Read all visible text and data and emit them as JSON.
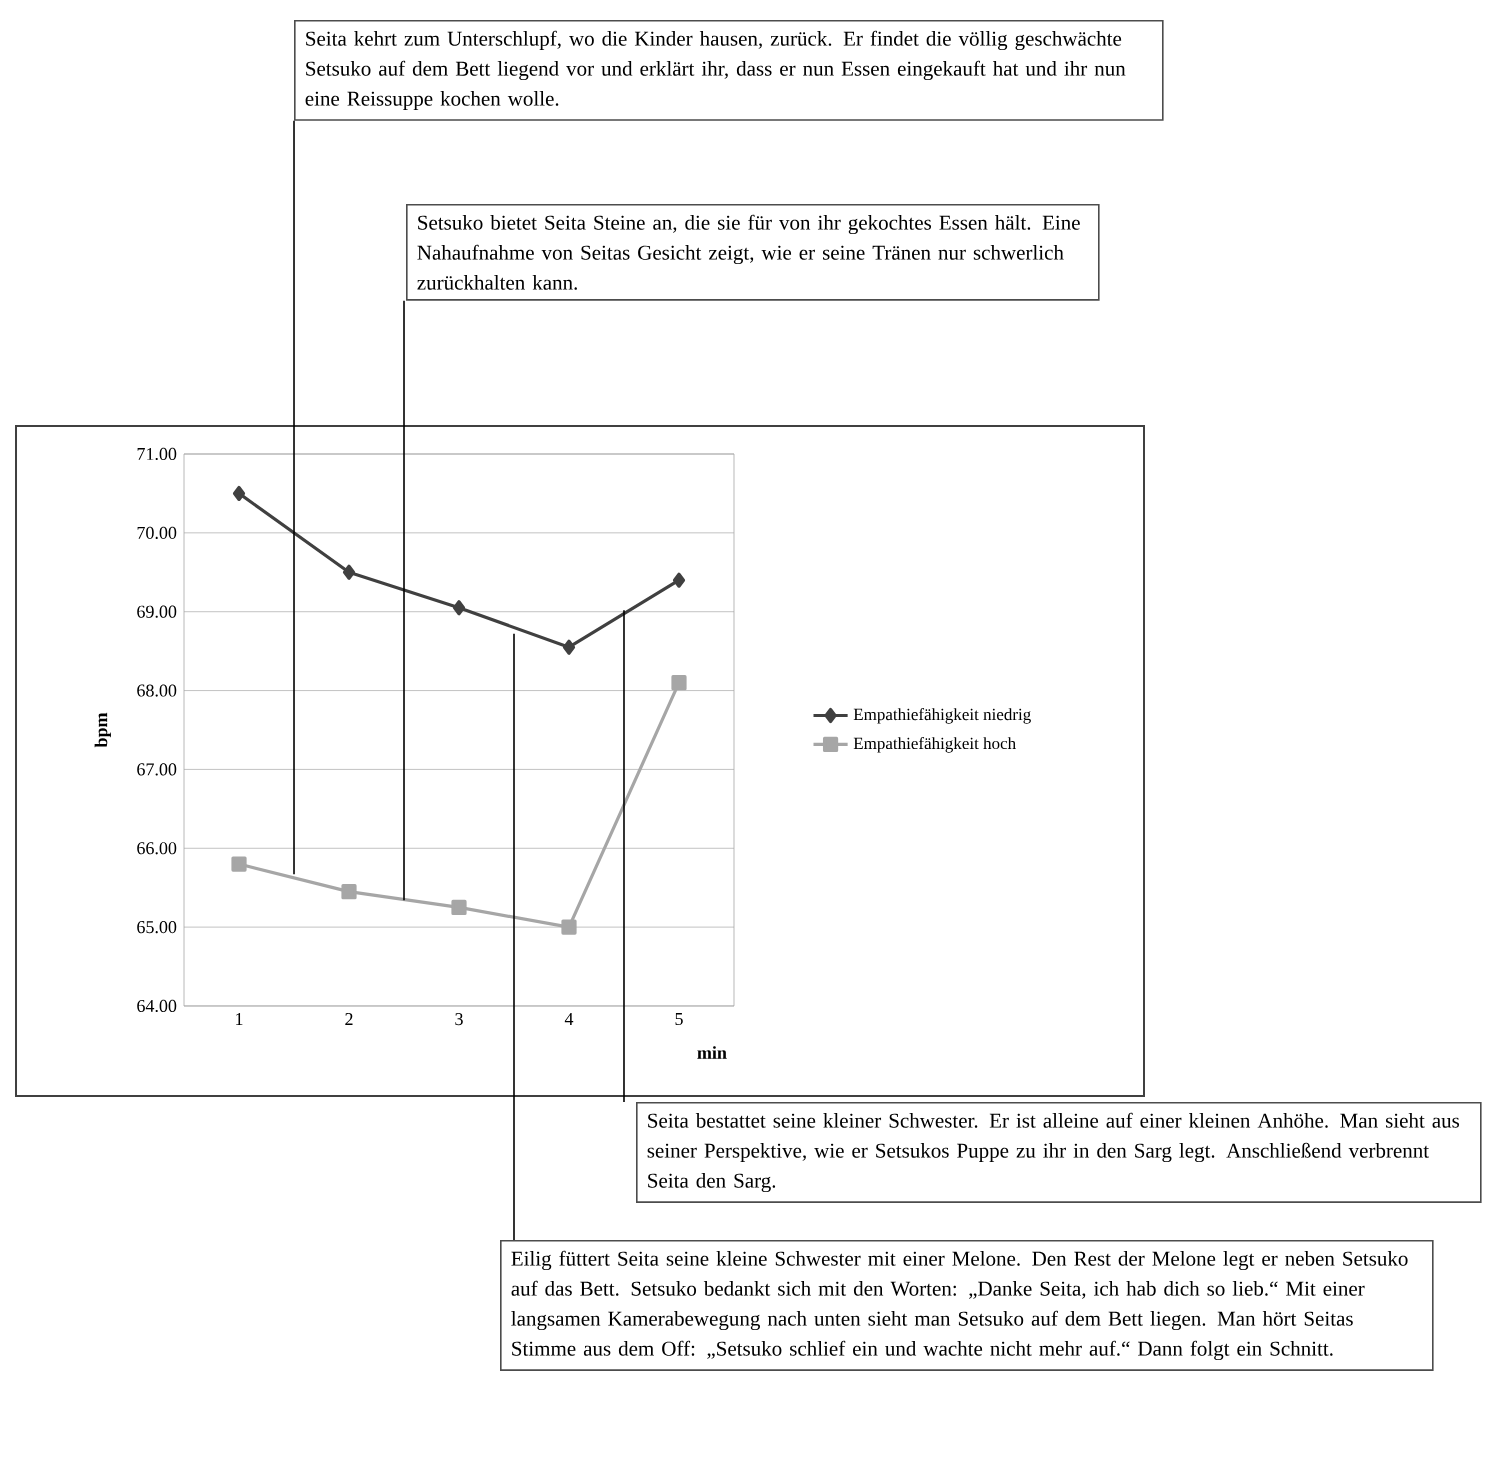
{
  "chart_data": {
    "type": "line",
    "xlabel": "min",
    "ylabel": "bpm",
    "x": [
      1,
      2,
      3,
      4,
      5
    ],
    "xlim": [
      0.5,
      5.5
    ],
    "xticks": [
      1,
      2,
      3,
      4,
      5
    ],
    "ylim": [
      64,
      71
    ],
    "yticks": [
      {
        "value": 64,
        "label": "64.00"
      },
      {
        "value": 65,
        "label": "65.00"
      },
      {
        "value": 66,
        "label": "66.00"
      },
      {
        "value": 67,
        "label": "67.00"
      },
      {
        "value": 68,
        "label": "68.00"
      },
      {
        "value": 69,
        "label": "69.00"
      },
      {
        "value": 70,
        "label": "70.00"
      },
      {
        "value": 71,
        "label": "71.00"
      }
    ],
    "grid": "y",
    "legend": "right",
    "series": [
      {
        "name": "Empathiefähigkeit niedrig",
        "color": "#404040",
        "marker": "diamond",
        "values": [
          70.5,
          69.5,
          69.05,
          68.55,
          69.4
        ]
      },
      {
        "name": "Empathiefähigkeit hoch",
        "color": "#a6a6a6",
        "marker": "square",
        "values": [
          65.8,
          65.45,
          65.25,
          65.0,
          68.1
        ]
      }
    ],
    "annotations": [
      {
        "text": "Seita kehrt zum Unterschlupf, wo die Kinder hausen, zurück. Er findet die völlig geschwächte Setsuko auf dem Bett liegend vor und erklärt ihr, dass er nun Essen eingekauft hat und ihr nun eine Reissuppe kochen wolle.",
        "x": 1.5,
        "y": 65.67
      },
      {
        "text": "Setsuko bietet Seita Steine an, die sie für von ihr gekochtes Essen hält. Eine Nahaufnahme von Seitas Gesicht zeigt, wie er seine Tränen nur schwerlich zurückhalten kann.",
        "x": 2.5,
        "y": 65.34
      },
      {
        "text": "Seita bestattet seine kleiner Schwester. Er ist alleine auf einer kleinen Anhöhe. Man sieht aus seiner Perspektive, wie er Setsukos Puppe zu ihr in den Sarg legt. Anschließend verbrennt Seita den Sarg.",
        "x": 4.5,
        "y": 69.02
      },
      {
        "text": "Eilig füttert Seita seine kleine Schwester mit einer Melone. Den Rest der Melone legt er neben Setsuko auf das Bett. Setsuko bedankt sich mit den Worten: „Danke Seita, ich hab dich so lieb.“ Mit einer langsamen Kamerabewegung nach unten sieht man Setsuko auf dem Bett liegen. Man hört Seitas Stimme aus dem Off: „Setsuko schlief ein und wachte nicht mehr auf.“ Dann folgt ein Schnitt.",
        "x": 3.5,
        "y": 68.72
      }
    ]
  }
}
